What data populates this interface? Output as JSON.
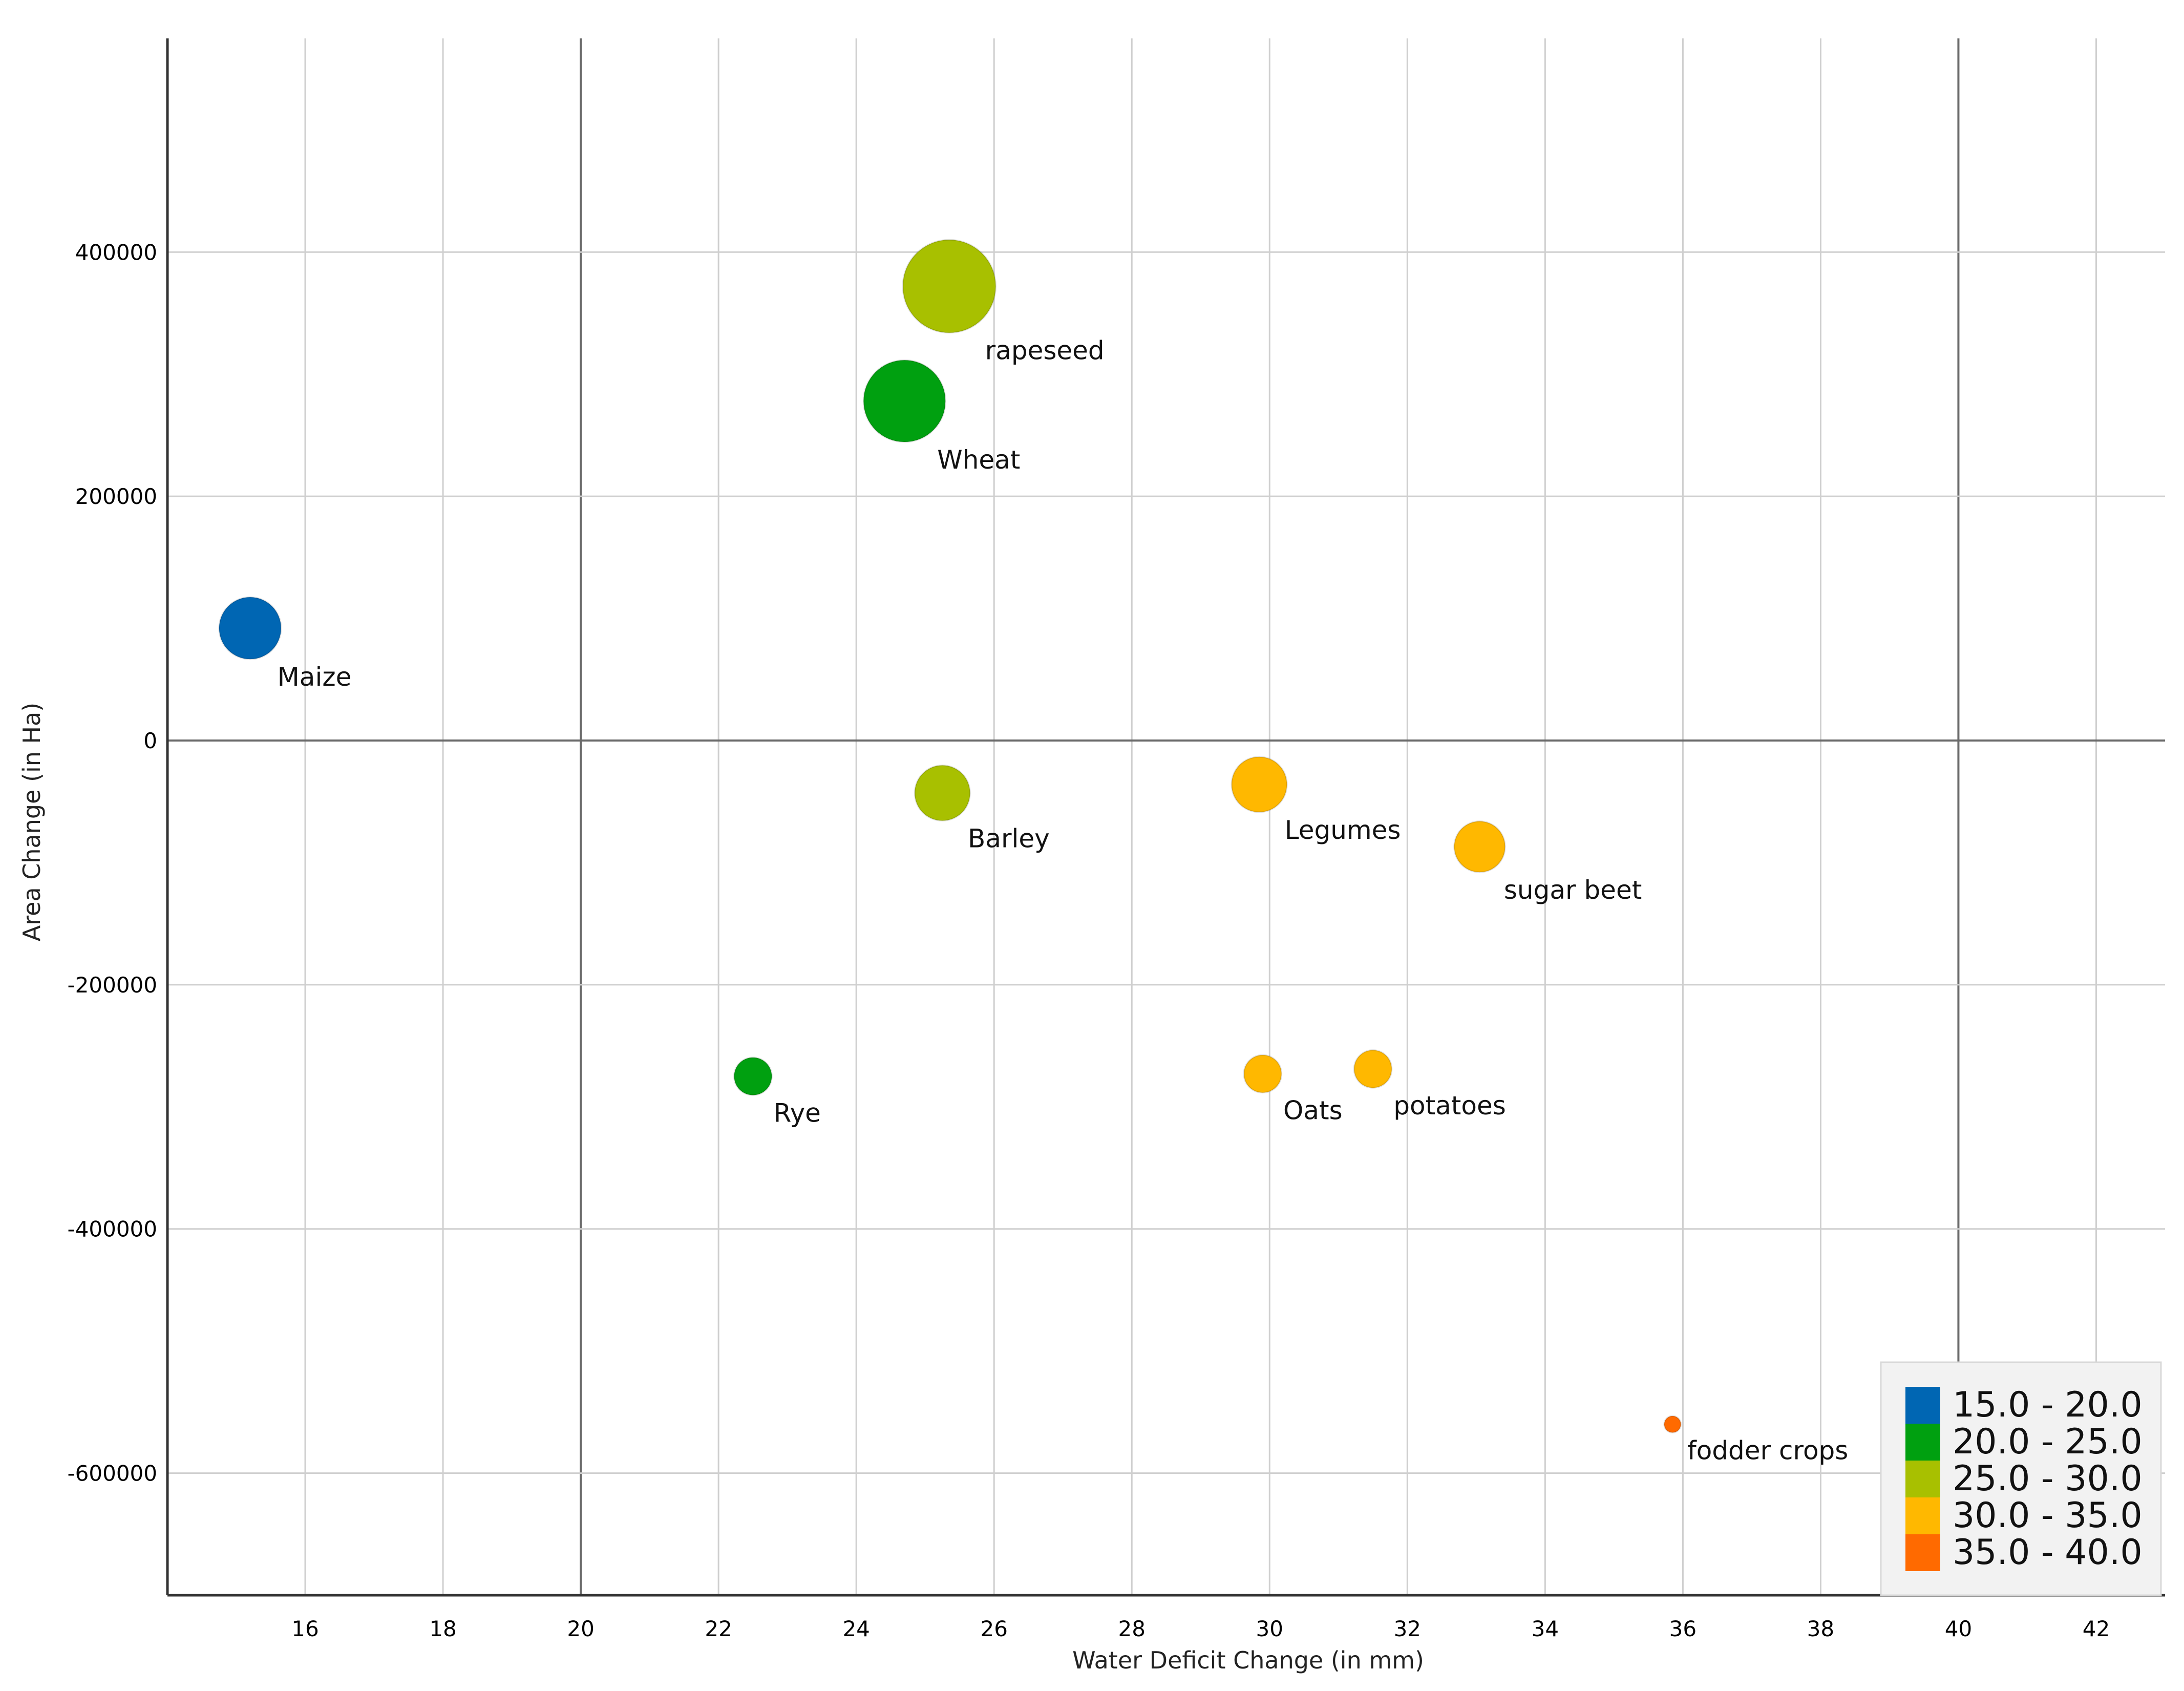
{
  "chart_data": {
    "type": "scatter",
    "subtype": "bubble",
    "title": "",
    "xlabel": "Water Deficit Change (in mm)",
    "ylabel": "Area Change (in Ha)",
    "xlim": [
      14,
      43
    ],
    "ylim": [
      -700000,
      575000
    ],
    "xticks": [
      16,
      18,
      20,
      22,
      24,
      26,
      28,
      30,
      32,
      34,
      36,
      38,
      40,
      42
    ],
    "yticks": [
      400000,
      200000,
      0,
      -200000,
      -400000,
      -600000
    ],
    "xtick_labels": [
      "16",
      "18",
      "20",
      "22",
      "24",
      "26",
      "28",
      "30",
      "32",
      "34",
      "36",
      "38",
      "40",
      "42"
    ],
    "ytick_labels": [
      "400000",
      "200000",
      "0",
      "-200000",
      "-400000",
      "-600000"
    ],
    "grid": true,
    "legend": {
      "position": "bottom-right",
      "entries": [
        {
          "label": "15.0 - 20.0",
          "color": "#0066b3"
        },
        {
          "label": "20.0 - 25.0",
          "color": "#00a010"
        },
        {
          "label": "25.0 - 30.0",
          "color": "#a8c000"
        },
        {
          "label": "30.0 - 35.0",
          "color": "#ffb800"
        },
        {
          "label": "35.0 - 40.0",
          "color": "#ff6a00"
        }
      ]
    },
    "points": [
      {
        "label": "Maize",
        "x": 15.2,
        "y": 92000,
        "size": 5.6,
        "color": "#0066b3"
      },
      {
        "label": "rapeseed",
        "x": 25.35,
        "y": 372000,
        "size": 8.4,
        "color": "#a8c000"
      },
      {
        "label": "Wheat",
        "x": 24.7,
        "y": 278000,
        "size": 7.4,
        "color": "#00a010"
      },
      {
        "label": "Barley",
        "x": 25.25,
        "y": -43000,
        "size": 5.0,
        "color": "#a8c000"
      },
      {
        "label": "Legumes",
        "x": 29.85,
        "y": -36000,
        "size": 5.0,
        "color": "#ffb800"
      },
      {
        "label": "sugar beet",
        "x": 33.05,
        "y": -87000,
        "size": 4.6,
        "color": "#ffb800"
      },
      {
        "label": "Rye",
        "x": 22.5,
        "y": -275000,
        "size": 3.4,
        "color": "#00a010"
      },
      {
        "label": "Oats",
        "x": 29.9,
        "y": -273000,
        "size": 3.4,
        "color": "#ffb800"
      },
      {
        "label": "potatoes",
        "x": 31.5,
        "y": -269000,
        "size": 3.4,
        "color": "#ffb800"
      },
      {
        "label": "fodder crops",
        "x": 35.85,
        "y": -560000,
        "size": 1.5,
        "color": "#ff6a00"
      }
    ]
  }
}
